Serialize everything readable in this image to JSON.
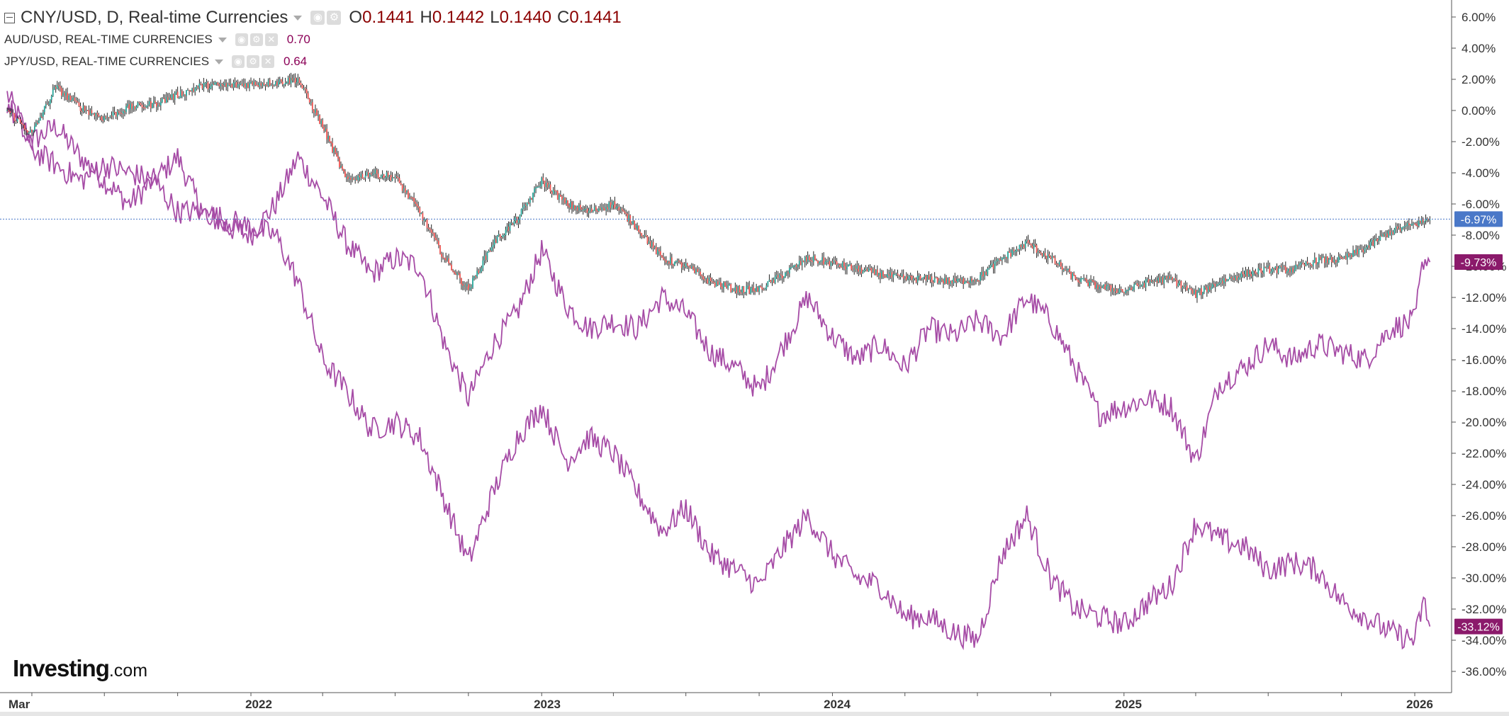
{
  "legend": {
    "main_title": "CNY/USD, D, Real-time Currencies",
    "ohlc": {
      "o_label": "O",
      "o": "0.1441",
      "h_label": "H",
      "h": "0.1442",
      "l_label": "L",
      "l": "0.1440",
      "c_label": "C",
      "c": "0.1441"
    },
    "aud_title": "AUD/USD, REAL-TIME CURRENCIES",
    "aud_value": "0.70",
    "jpy_title": "JPY/USD, REAL-TIME CURRENCIES",
    "jpy_value": "0.64",
    "icons": [
      "collapse-icon",
      "eye-icon",
      "gear-icon",
      "close-icon",
      "caret-down-icon"
    ]
  },
  "watermark": {
    "brand": "Investing",
    "suffix": ".com"
  },
  "colors": {
    "up": "#26a69a",
    "down": "#ef5350",
    "wick": "#222222",
    "comparison": "#a64ca6",
    "axis_text": "#333333",
    "grid": "#e0e0e0",
    "last_line": "#4a78c8",
    "cny_tag": "#4a78c8",
    "cmp_tag": "#8b1a6b"
  },
  "chart_data": {
    "type": "line",
    "x_axis": {
      "ticks": [
        "Mar",
        "2022",
        "2023",
        "2024",
        "2025",
        "2026"
      ]
    },
    "y_axis": {
      "unit": "%",
      "range": [
        -37,
        6.5
      ],
      "ticks": [
        6,
        4,
        2,
        0,
        -2,
        -4,
        -6,
        -8,
        -10,
        -12,
        -14,
        -16,
        -18,
        -20,
        -22,
        -24,
        -26,
        -28,
        -30,
        -32,
        -34,
        -36
      ],
      "tick_labels": [
        "6.00%",
        "4.00%",
        "2.00%",
        "0.00%",
        "-2.00%",
        "-4.00%",
        "-6.00%",
        "-8.00%",
        "-10.00%",
        "-12.00%",
        "-14.00%",
        "-16.00%",
        "-18.00%",
        "-20.00%",
        "-22.00%",
        "-24.00%",
        "-26.00%",
        "-28.00%",
        "-30.00%",
        "-32.00%",
        "-34.00%",
        "-36.00%"
      ]
    },
    "grid": false,
    "series": [
      {
        "name": "CNY/USD",
        "style": "candles",
        "last_label": "-6.97%",
        "points": [
          [
            "2021-03-01",
            0
          ],
          [
            "2021-04-01",
            -1.5
          ],
          [
            "2021-05-01",
            1.5
          ],
          [
            "2021-06-01",
            0.2
          ],
          [
            "2021-07-01",
            -0.5
          ],
          [
            "2021-08-01",
            0.2
          ],
          [
            "2021-09-01",
            0.4
          ],
          [
            "2021-10-01",
            1.0
          ],
          [
            "2021-11-01",
            1.6
          ],
          [
            "2021-12-01",
            1.6
          ],
          [
            "2022-01-01",
            1.7
          ],
          [
            "2022-02-01",
            1.8
          ],
          [
            "2022-03-01",
            2.0
          ],
          [
            "2022-04-01",
            -1.0
          ],
          [
            "2022-05-01",
            -4.5
          ],
          [
            "2022-06-01",
            -4.0
          ],
          [
            "2022-07-01",
            -4.3
          ],
          [
            "2022-08-01",
            -6.5
          ],
          [
            "2022-09-01",
            -9.5
          ],
          [
            "2022-10-01",
            -11.5
          ],
          [
            "2022-11-01",
            -8.5
          ],
          [
            "2022-12-01",
            -7.0
          ],
          [
            "2023-01-01",
            -4.5
          ],
          [
            "2023-02-01",
            -6.0
          ],
          [
            "2023-03-01",
            -6.5
          ],
          [
            "2023-04-01",
            -6.0
          ],
          [
            "2023-05-01",
            -7.5
          ],
          [
            "2023-06-01",
            -9.5
          ],
          [
            "2023-07-01",
            -10.0
          ],
          [
            "2023-08-01",
            -11.0
          ],
          [
            "2023-09-01",
            -11.5
          ],
          [
            "2023-10-01",
            -11.5
          ],
          [
            "2023-11-01",
            -10.5
          ],
          [
            "2023-12-01",
            -9.5
          ],
          [
            "2024-01-01",
            -9.8
          ],
          [
            "2024-02-01",
            -10.2
          ],
          [
            "2024-03-01",
            -10.5
          ],
          [
            "2024-04-01",
            -10.8
          ],
          [
            "2024-05-01",
            -10.8
          ],
          [
            "2024-06-01",
            -11.0
          ],
          [
            "2024-07-01",
            -10.8
          ],
          [
            "2024-08-01",
            -9.5
          ],
          [
            "2024-09-01",
            -8.5
          ],
          [
            "2024-10-01",
            -9.5
          ],
          [
            "2024-11-01",
            -10.8
          ],
          [
            "2024-12-01",
            -11.3
          ],
          [
            "2025-01-01",
            -11.6
          ],
          [
            "2025-02-01",
            -11.0
          ],
          [
            "2025-03-01",
            -10.8
          ],
          [
            "2025-04-01",
            -11.8
          ],
          [
            "2025-05-01",
            -11.0
          ],
          [
            "2025-06-01",
            -10.5
          ],
          [
            "2025-07-01",
            -10.2
          ],
          [
            "2025-08-01",
            -10.2
          ],
          [
            "2025-09-01",
            -9.6
          ],
          [
            "2025-10-01",
            -9.6
          ],
          [
            "2025-11-01",
            -8.8
          ],
          [
            "2025-12-01",
            -7.8
          ],
          [
            "2026-01-01",
            -7.3
          ],
          [
            "2026-01-20",
            -6.97
          ]
        ]
      },
      {
        "name": "AUD/USD",
        "style": "line",
        "last_label": "-9.73%",
        "points": [
          [
            "2021-03-01",
            1.0
          ],
          [
            "2021-04-01",
            -2.0
          ],
          [
            "2021-05-01",
            -1.0
          ],
          [
            "2021-06-01",
            -3.0
          ],
          [
            "2021-07-01",
            -4.5
          ],
          [
            "2021-08-01",
            -6.0
          ],
          [
            "2021-09-01",
            -4.5
          ],
          [
            "2021-10-01",
            -3.0
          ],
          [
            "2021-11-01",
            -6.5
          ],
          [
            "2021-12-01",
            -7.5
          ],
          [
            "2022-01-01",
            -8.0
          ],
          [
            "2022-02-01",
            -6.0
          ],
          [
            "2022-03-01",
            -3.0
          ],
          [
            "2022-04-01",
            -5.5
          ],
          [
            "2022-05-01",
            -8.5
          ],
          [
            "2022-06-01",
            -10.5
          ],
          [
            "2022-07-01",
            -9.5
          ],
          [
            "2022-08-01",
            -10.0
          ],
          [
            "2022-09-01",
            -15.0
          ],
          [
            "2022-10-01",
            -18.5
          ],
          [
            "2022-11-01",
            -15.0
          ],
          [
            "2022-12-01",
            -13.0
          ],
          [
            "2023-01-01",
            -9.0
          ],
          [
            "2023-02-01",
            -12.5
          ],
          [
            "2023-03-01",
            -14.0
          ],
          [
            "2023-04-01",
            -13.5
          ],
          [
            "2023-05-01",
            -14.0
          ],
          [
            "2023-06-01",
            -12.0
          ],
          [
            "2023-07-01",
            -13.0
          ],
          [
            "2023-08-01",
            -15.5
          ],
          [
            "2023-09-01",
            -16.5
          ],
          [
            "2023-10-01",
            -18.0
          ],
          [
            "2023-11-01",
            -15.0
          ],
          [
            "2023-12-01",
            -12.0
          ],
          [
            "2024-01-01",
            -14.5
          ],
          [
            "2024-02-01",
            -16.0
          ],
          [
            "2024-03-01",
            -15.0
          ],
          [
            "2024-04-01",
            -16.5
          ],
          [
            "2024-05-01",
            -14.0
          ],
          [
            "2024-06-01",
            -14.5
          ],
          [
            "2024-07-01",
            -13.5
          ],
          [
            "2024-08-01",
            -14.5
          ],
          [
            "2024-09-01",
            -12.0
          ],
          [
            "2024-10-01",
            -13.5
          ],
          [
            "2024-11-01",
            -16.5
          ],
          [
            "2024-12-01",
            -19.5
          ],
          [
            "2025-01-01",
            -19.0
          ],
          [
            "2025-02-01",
            -18.5
          ],
          [
            "2025-03-01",
            -19.0
          ],
          [
            "2025-04-01",
            -22.5
          ],
          [
            "2025-05-01",
            -17.5
          ],
          [
            "2025-06-01",
            -16.5
          ],
          [
            "2025-07-01",
            -15.0
          ],
          [
            "2025-08-01",
            -16.0
          ],
          [
            "2025-09-01",
            -15.0
          ],
          [
            "2025-10-01",
            -15.5
          ],
          [
            "2025-11-01",
            -16.0
          ],
          [
            "2025-12-01",
            -14.0
          ],
          [
            "2026-01-01",
            -13.5
          ],
          [
            "2026-01-12",
            -9.5
          ],
          [
            "2026-01-20",
            -9.73
          ]
        ]
      },
      {
        "name": "JPY/USD",
        "style": "line",
        "last_label": "-33.12%",
        "points": [
          [
            "2021-03-01",
            0.5
          ],
          [
            "2021-04-01",
            -2.5
          ],
          [
            "2021-05-01",
            -3.5
          ],
          [
            "2021-06-01",
            -4.5
          ],
          [
            "2021-07-01",
            -3.5
          ],
          [
            "2021-08-01",
            -4.0
          ],
          [
            "2021-09-01",
            -4.5
          ],
          [
            "2021-10-01",
            -6.5
          ],
          [
            "2021-11-01",
            -6.5
          ],
          [
            "2021-12-01",
            -7.0
          ],
          [
            "2022-01-01",
            -7.5
          ],
          [
            "2022-02-01",
            -8.0
          ],
          [
            "2022-03-01",
            -11.0
          ],
          [
            "2022-04-01",
            -16.0
          ],
          [
            "2022-05-01",
            -18.0
          ],
          [
            "2022-06-01",
            -20.5
          ],
          [
            "2022-07-01",
            -20.0
          ],
          [
            "2022-08-01",
            -21.0
          ],
          [
            "2022-09-01",
            -25.0
          ],
          [
            "2022-10-01",
            -29.0
          ],
          [
            "2022-11-01",
            -24.5
          ],
          [
            "2022-12-01",
            -21.0
          ],
          [
            "2023-01-01",
            -19.0
          ],
          [
            "2023-02-01",
            -22.5
          ],
          [
            "2023-03-01",
            -21.0
          ],
          [
            "2023-04-01",
            -22.0
          ],
          [
            "2023-05-01",
            -24.5
          ],
          [
            "2023-06-01",
            -27.0
          ],
          [
            "2023-07-01",
            -25.5
          ],
          [
            "2023-08-01",
            -28.5
          ],
          [
            "2023-09-01",
            -29.5
          ],
          [
            "2023-10-01",
            -30.5
          ],
          [
            "2023-11-01",
            -28.0
          ],
          [
            "2023-12-01",
            -26.0
          ],
          [
            "2024-01-01",
            -28.5
          ],
          [
            "2024-02-01",
            -30.0
          ],
          [
            "2024-03-01",
            -30.5
          ],
          [
            "2024-04-01",
            -32.5
          ],
          [
            "2024-05-01",
            -32.5
          ],
          [
            "2024-06-01",
            -33.5
          ],
          [
            "2024-07-01",
            -34.0
          ],
          [
            "2024-08-01",
            -28.5
          ],
          [
            "2024-09-01",
            -26.0
          ],
          [
            "2024-10-01",
            -30.0
          ],
          [
            "2024-11-01",
            -32.0
          ],
          [
            "2024-12-01",
            -32.5
          ],
          [
            "2025-01-01",
            -33.0
          ],
          [
            "2025-02-01",
            -31.5
          ],
          [
            "2025-03-01",
            -30.5
          ],
          [
            "2025-04-01",
            -26.5
          ],
          [
            "2025-05-01",
            -27.5
          ],
          [
            "2025-06-01",
            -28.0
          ],
          [
            "2025-07-01",
            -29.5
          ],
          [
            "2025-08-01",
            -29.0
          ],
          [
            "2025-09-01",
            -29.5
          ],
          [
            "2025-10-01",
            -31.5
          ],
          [
            "2025-11-01",
            -32.5
          ],
          [
            "2025-12-01",
            -33.5
          ],
          [
            "2026-01-01",
            -34.0
          ],
          [
            "2026-01-12",
            -31.5
          ],
          [
            "2026-01-20",
            -33.12
          ]
        ]
      }
    ]
  }
}
